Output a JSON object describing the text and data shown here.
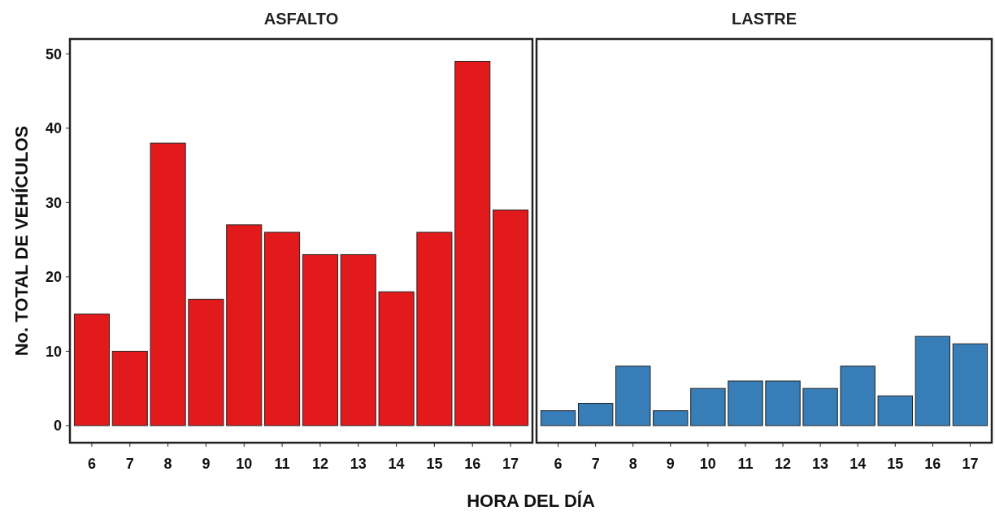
{
  "chart_data": [
    {
      "type": "bar",
      "title": "ASFALTO",
      "ylabel": "No. TOTAL DE VEHÍCULOS",
      "xlabel": "HORA DEL DÍA",
      "categories": [
        "6",
        "7",
        "8",
        "9",
        "10",
        "11",
        "12",
        "13",
        "14",
        "15",
        "16",
        "17"
      ],
      "values": [
        15,
        10,
        38,
        17,
        27,
        26,
        23,
        23,
        18,
        26,
        49,
        29
      ],
      "color": "#e31a1c",
      "ylim": [
        -2.3,
        52
      ],
      "yticks": [
        0,
        10,
        20,
        30,
        40,
        50
      ],
      "grid": false
    },
    {
      "type": "bar",
      "title": "LASTRE",
      "categories": [
        "6",
        "7",
        "8",
        "9",
        "10",
        "11",
        "12",
        "13",
        "14",
        "15",
        "16",
        "17"
      ],
      "values": [
        2,
        3,
        8,
        2,
        5,
        6,
        6,
        5,
        8,
        4,
        12,
        11
      ],
      "color": "#377eb8",
      "ylim": [
        -2.3,
        52
      ],
      "grid": false,
      "tick_labels": "x"
    }
  ]
}
